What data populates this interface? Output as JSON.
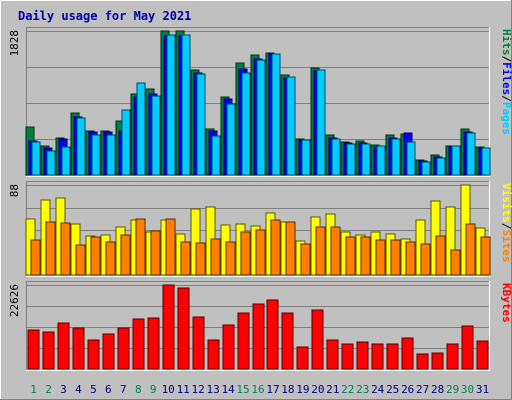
{
  "chart_data": {
    "type": "bar",
    "title": "Daily usage for May 2021",
    "categories": [
      "1",
      "2",
      "3",
      "4",
      "5",
      "6",
      "7",
      "8",
      "9",
      "10",
      "11",
      "12",
      "13",
      "14",
      "15",
      "16",
      "17",
      "18",
      "19",
      "20",
      "21",
      "22",
      "23",
      "24",
      "25",
      "26",
      "27",
      "28",
      "29",
      "30",
      "31"
    ],
    "weekend_days": [
      "1",
      "2",
      "8",
      "9",
      "15",
      "16",
      "22",
      "23",
      "29",
      "30"
    ],
    "panels": [
      {
        "id": "hits",
        "ymax_label": "1828",
        "ylim": [
          0,
          1828
        ],
        "right_labels": [
          "Pages",
          "Files",
          "Hits"
        ],
        "series": [
          {
            "name": "Hits",
            "color": "#008040",
            "values": [
              610,
              370,
              470,
              790,
              560,
              560,
              680,
              1030,
              1090,
              1828,
              1828,
              1330,
              580,
              990,
              1420,
              1520,
              1550,
              1270,
              460,
              1360,
              510,
              420,
              430,
              380,
              510,
              520,
              190,
              260,
              370,
              580,
              360
            ]
          },
          {
            "name": "Files",
            "color": "#0000ff",
            "values": [
              430,
              340,
              460,
              740,
              550,
              540,
              560,
              990,
              1030,
              1760,
              1770,
              1300,
              560,
              960,
              1350,
              1470,
              1530,
              1230,
              450,
              1320,
              470,
              400,
              400,
              360,
              470,
              530,
              180,
              230,
              360,
              550,
              340
            ]
          },
          {
            "name": "Pages",
            "color": "#00ccff",
            "values": [
              420,
              310,
              360,
              720,
              510,
              510,
              830,
              1170,
              1000,
              1780,
              1780,
              1280,
              500,
              900,
              1300,
              1460,
              1530,
              1240,
              440,
              1330,
              460,
              390,
              390,
              370,
              460,
              420,
              170,
              220,
              370,
              530,
              340
            ]
          }
        ]
      },
      {
        "id": "visits",
        "ymax_label": "88",
        "ylim": [
          0,
          88
        ],
        "right_labels": [
          "Sites",
          "Visits"
        ],
        "series": [
          {
            "name": "Visits",
            "color": "#ffff00",
            "values": [
              55,
              73,
              75,
              50,
              38,
              39,
              47,
              54,
              42,
              54,
              40,
              65,
              66,
              49,
              50,
              48,
              61,
              52,
              33,
              57,
              60,
              42,
              39,
              42,
              40,
              35,
              54,
              72,
              66,
              88,
              46
            ]
          },
          {
            "name": "Sites",
            "color": "#ff8000",
            "values": [
              34,
              52,
              51,
              29,
              37,
              32,
              39,
              55,
              43,
              55,
              32,
              31,
              35,
              32,
              42,
              44,
              54,
              52,
              30,
              47,
              47,
              37,
              37,
              34,
              34,
              32,
              30,
              38,
              24,
              50,
              37
            ]
          }
        ]
      },
      {
        "id": "kbytes",
        "ymax_label": "22626",
        "ylim": [
          0,
          22626
        ],
        "right_labels": [
          "KBytes"
        ],
        "series": [
          {
            "name": "KBytes",
            "color": "#ff0000",
            "values": [
              10600,
              10000,
              12300,
              11100,
              7800,
              9400,
              11000,
              13500,
              13700,
              22626,
              21800,
              14000,
              7900,
              11900,
              15200,
              17400,
              18500,
              15000,
              5800,
              15800,
              7800,
              6600,
              7200,
              6600,
              6600,
              8300,
              4100,
              4400,
              6600,
              11600,
              7500
            ]
          }
        ]
      }
    ]
  }
}
